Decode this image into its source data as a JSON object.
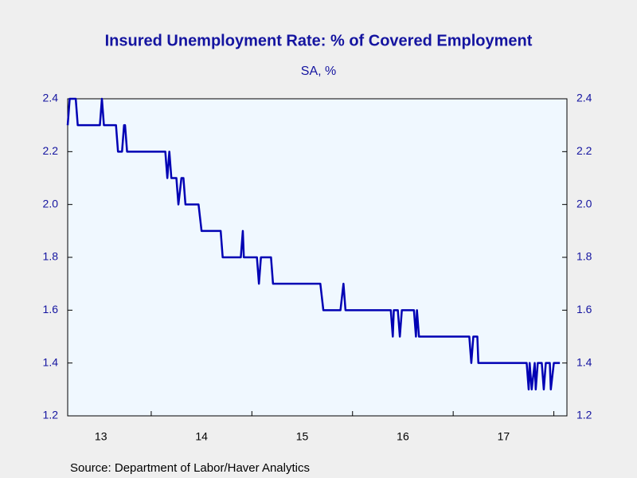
{
  "chart_data": {
    "type": "line",
    "title": "Insured Unemployment Rate: % of Covered Employment",
    "subtitle": "SA, %",
    "source": "Source:  Department of Labor/Haver Analytics",
    "x": [
      13.17,
      13.19,
      13.25,
      13.27,
      13.49,
      13.51,
      13.53,
      13.65,
      13.67,
      13.71,
      13.73,
      13.74,
      13.76,
      14.14,
      14.16,
      14.18,
      14.2,
      14.25,
      14.27,
      14.3,
      14.32,
      14.34,
      14.47,
      14.5,
      14.69,
      14.71,
      14.89,
      14.91,
      14.92,
      15.05,
      15.07,
      15.09,
      15.19,
      15.21,
      15.68,
      15.71,
      15.88,
      15.91,
      15.93,
      16.38,
      16.4,
      16.41,
      16.45,
      16.47,
      16.49,
      16.61,
      16.63,
      16.64,
      16.66,
      17.16,
      17.18,
      17.2,
      17.24,
      17.25,
      17.73,
      17.75,
      17.76,
      17.78,
      17.81,
      17.82,
      17.84,
      17.88,
      17.9,
      17.92,
      17.96,
      17.97,
      18.0,
      18.06
    ],
    "series": [
      {
        "name": "Insured Unemployment Rate",
        "color": "#0000b4",
        "values": [
          2.3,
          2.4,
          2.4,
          2.3,
          2.3,
          2.4,
          2.3,
          2.3,
          2.2,
          2.2,
          2.3,
          2.3,
          2.2,
          2.2,
          2.1,
          2.2,
          2.1,
          2.1,
          2.0,
          2.1,
          2.1,
          2.0,
          2.0,
          1.9,
          1.9,
          1.8,
          1.8,
          1.9,
          1.8,
          1.8,
          1.7,
          1.8,
          1.8,
          1.7,
          1.7,
          1.6,
          1.6,
          1.7,
          1.6,
          1.6,
          1.5,
          1.6,
          1.6,
          1.5,
          1.6,
          1.6,
          1.5,
          1.6,
          1.5,
          1.5,
          1.4,
          1.5,
          1.5,
          1.4,
          1.4,
          1.3,
          1.4,
          1.3,
          1.4,
          1.3,
          1.4,
          1.4,
          1.3,
          1.4,
          1.4,
          1.3,
          1.4,
          1.4
        ]
      }
    ],
    "xlim": [
      13.17,
      18.13
    ],
    "xticks": [
      14,
      15,
      16,
      17,
      18
    ],
    "xtick_labels": [
      {
        "value": 13.5,
        "label": "13"
      },
      {
        "value": 14.5,
        "label": "14"
      },
      {
        "value": 15.5,
        "label": "15"
      },
      {
        "value": 16.5,
        "label": "16"
      },
      {
        "value": 17.5,
        "label": "17"
      }
    ],
    "ylim": [
      1.2,
      2.4
    ],
    "yticks": [
      {
        "value": 1.2,
        "label": "1.2"
      },
      {
        "value": 1.4,
        "label": "1.4"
      },
      {
        "value": 1.6,
        "label": "1.6"
      },
      {
        "value": 1.8,
        "label": "1.8"
      },
      {
        "value": 2.0,
        "label": "2.0"
      },
      {
        "value": 2.2,
        "label": "2.2"
      },
      {
        "value": 2.4,
        "label": "2.4"
      }
    ],
    "y2lim": [
      1.2,
      2.4
    ],
    "y2ticks": [
      {
        "value": 1.2,
        "label": "1.2"
      },
      {
        "value": 1.4,
        "label": "1.4"
      },
      {
        "value": 1.6,
        "label": "1.6"
      },
      {
        "value": 1.8,
        "label": "1.8"
      },
      {
        "value": 2.0,
        "label": "2.0"
      },
      {
        "value": 2.2,
        "label": "2.2"
      },
      {
        "value": 2.4,
        "label": "2.4"
      }
    ],
    "grid": false
  }
}
